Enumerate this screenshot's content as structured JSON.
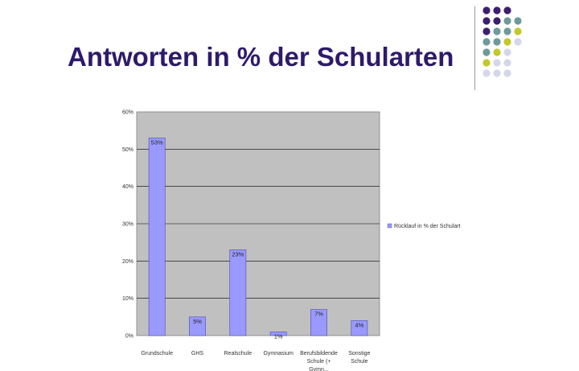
{
  "slide": {
    "title": "Antworten in % der Schularten"
  },
  "colors": {
    "title": "#2e1a6b",
    "plot_bg": "#c0c0c0",
    "bar_fill": "#9999ff",
    "bar_stroke": "#4a4ab0",
    "dot_purple": "#3b1e6e",
    "dot_teal": "#6e9a9a",
    "dot_lime": "#c4c82a",
    "dot_lavender": "#d6d6ea"
  },
  "chart_data": {
    "type": "bar",
    "categories": [
      [
        "Grundschule"
      ],
      [
        "GHS"
      ],
      [
        "Realschule"
      ],
      [
        "Gymnasium"
      ],
      [
        "Berufsbildende",
        "Schule (+",
        "Gymn..."
      ],
      [
        "Sonstige",
        "Schule"
      ]
    ],
    "series": [
      {
        "name": "Rücklauf in % der Schulart",
        "values": [
          53,
          5,
          23,
          1,
          7,
          4
        ]
      }
    ],
    "data_labels": [
      "53%",
      "5%",
      "23%",
      "1%",
      "7%",
      "4%"
    ],
    "yticks": [
      "0%",
      "10%",
      "20%",
      "30%",
      "40%",
      "50%",
      "60%"
    ],
    "ylim": [
      0,
      60
    ],
    "grid": true,
    "legend_position": "right"
  }
}
